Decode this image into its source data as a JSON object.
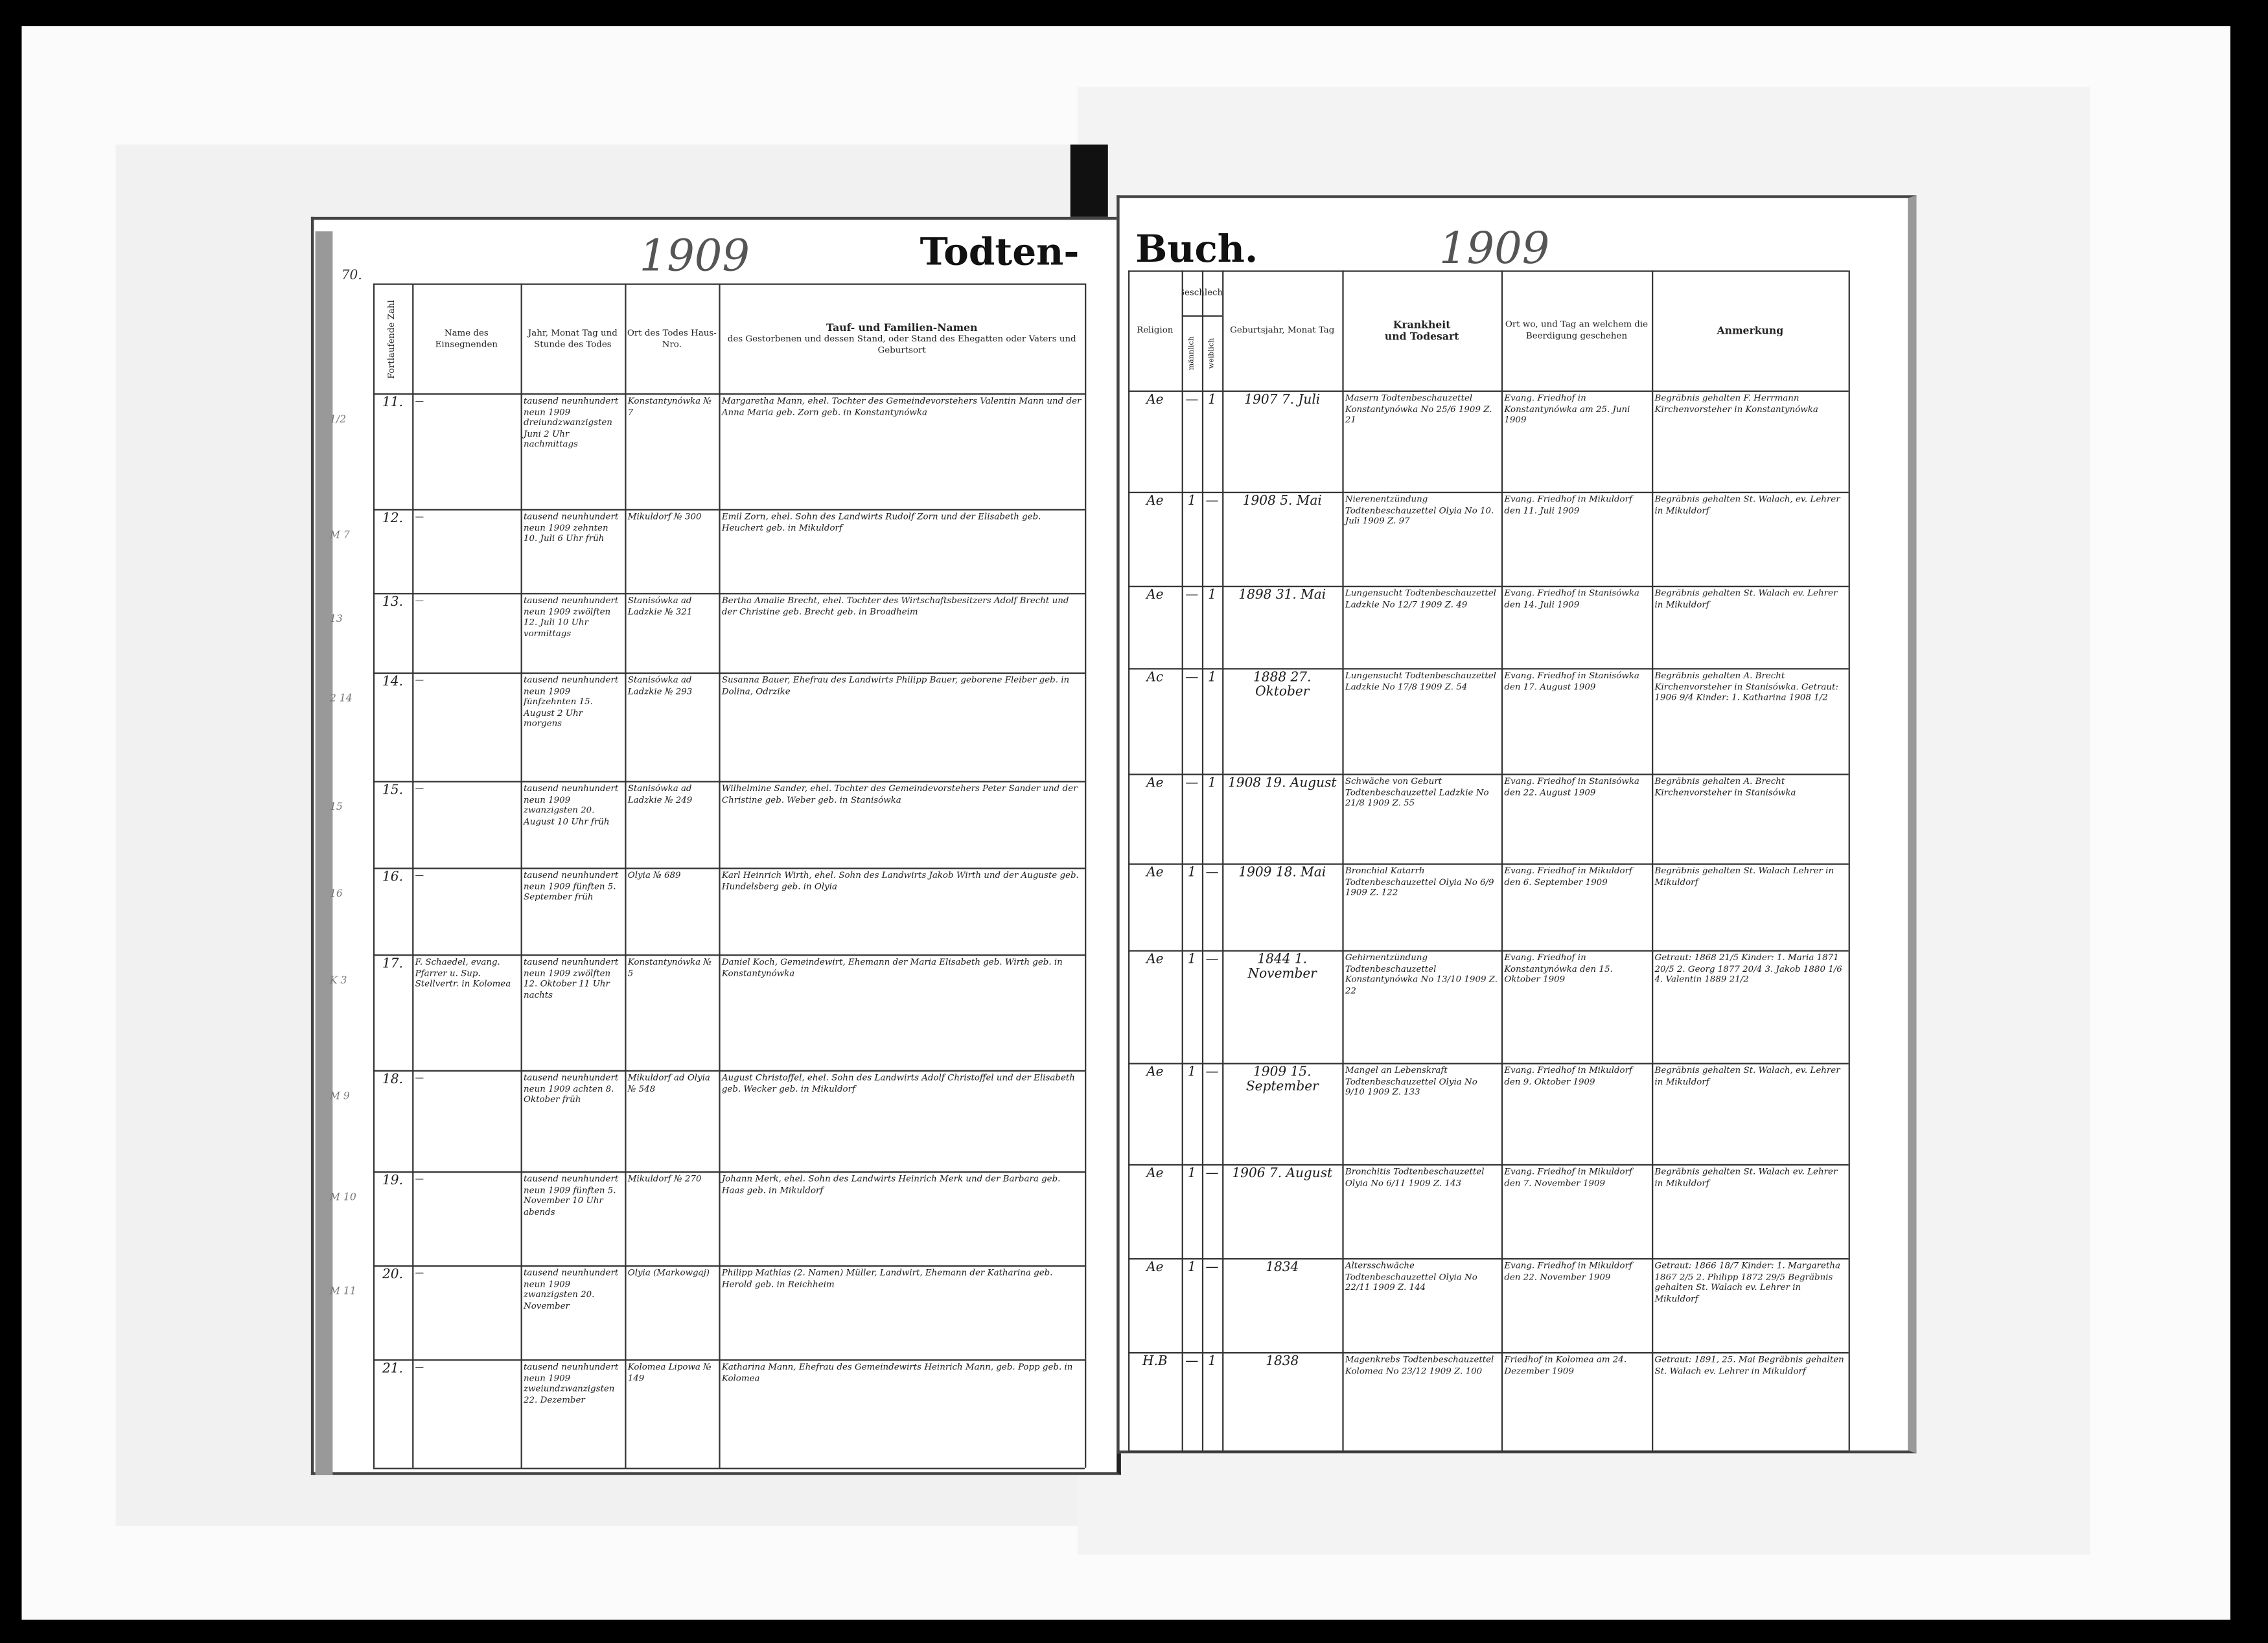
{
  "left_page": {
    "page_number": "70.",
    "year": "1909",
    "title": "Todten-",
    "headers": {
      "number": "Fortlaufende Zahl",
      "officiant": "Name des Einsegnenden",
      "death_date": "Jahr, Monat Tag und Stunde des Todes",
      "place": "Ort des Todes Haus-Nro.",
      "name_title": "Tauf- und Familien-Namen",
      "name_sub": "des Gestorbenen und dessen Stand, oder Stand des Ehegatten oder Vaters und Geburtsort"
    }
  },
  "right_page": {
    "title": "Buch.",
    "year": "1909",
    "headers": {
      "religion": "Religion",
      "sex": "Geschlecht",
      "male": "männlich",
      "female": "weiblich",
      "birth": "Geburtsjahr, Monat Tag",
      "disease_title": "Krankheit",
      "disease_sub": "und Todesart",
      "burial": "Ort wo, und Tag an welchem die Beerdigung geschehen",
      "remarks": "Anmerkung"
    }
  },
  "margin_notes": [
    "1/2",
    "M 7",
    "13",
    "2 14",
    "15",
    "16",
    "K 3",
    "M 9",
    "M 10",
    "M 11",
    ""
  ],
  "rows": [
    {
      "number": "11.",
      "officiant": "—",
      "death_date": "tausend neunhundert neun 1909 dreiundzwanzigsten Juni 2 Uhr nachmittags",
      "place": "Konstantynówka № 7",
      "name": "Margaretha Mann, ehel. Tochter des Gemeindevorstehers Valentin Mann und der Anna Maria geb. Zorn geb. in Konstantynówka",
      "religion": "Ae",
      "male": "—",
      "female": "1",
      "birth": "1907 7. Juli",
      "disease": "Masern Todtenbeschauzettel Konstantynówka No 25/6 1909 Z. 21",
      "burial": "Evang. Friedhof in Konstantynówka am 25. Juni 1909",
      "remarks": "Begräbnis gehalten F. Herrmann Kirchenvorsteher in Konstantynówka"
    },
    {
      "number": "12.",
      "officiant": "—",
      "death_date": "tausend neunhundert neun 1909 zehnten 10. Juli 6 Uhr früh",
      "place": "Mikuldorf № 300",
      "name": "Emil Zorn, ehel. Sohn des Landwirts Rudolf Zorn und der Elisabeth geb. Heuchert geb. in Mikuldorf",
      "religion": "Ae",
      "male": "1",
      "female": "—",
      "birth": "1908 5. Mai",
      "disease": "Nierenentzündung Todtenbeschauzettel Olyia No 10. Juli 1909 Z. 97",
      "burial": "Evang. Friedhof in Mikuldorf den 11. Juli 1909",
      "remarks": "Begräbnis gehalten St. Walach, ev. Lehrer in Mikuldorf"
    },
    {
      "number": "13.",
      "officiant": "—",
      "death_date": "tausend neunhundert neun 1909 zwölften 12. Juli 10 Uhr vormittags",
      "place": "Stanisówka ad Ladzkie № 321",
      "name": "Bertha Amalie Brecht, ehel. Tochter des Wirtschaftsbesitzers Adolf Brecht und der Christine geb. Brecht geb. in Broadheim",
      "religion": "Ae",
      "male": "—",
      "female": "1",
      "birth": "1898 31. Mai",
      "disease": "Lungensucht Todtenbeschauzettel Ladzkie No 12/7 1909 Z. 49",
      "burial": "Evang. Friedhof in Stanisówka den 14. Juli 1909",
      "remarks": "Begräbnis gehalten St. Walach ev. Lehrer in Mikuldorf"
    },
    {
      "number": "14.",
      "officiant": "—",
      "death_date": "tausend neunhundert neun 1909 fünfzehnten 15. August 2 Uhr morgens",
      "place": "Stanisówka ad Ladzkie № 293",
      "name": "Susanna Bauer, Ehefrau des Landwirts Philipp Bauer, geborene Fleiber geb. in Dolina, Odrzike",
      "religion": "Ac",
      "male": "—",
      "female": "1",
      "birth": "1888 27. Oktober",
      "disease": "Lungensucht Todtenbeschauzettel Ladzkie No 17/8 1909 Z. 54",
      "burial": "Evang. Friedhof in Stanisówka den 17. August 1909",
      "remarks": "Begräbnis gehalten A. Brecht Kirchenvorsteher in Stanisówka. Getraut: 1906 9/4 Kinder: 1. Katharina 1908 1/2"
    },
    {
      "number": "15.",
      "officiant": "—",
      "death_date": "tausend neunhundert neun 1909 zwanzigsten 20. August 10 Uhr früh",
      "place": "Stanisówka ad Ladzkie № 249",
      "name": "Wilhelmine Sander, ehel. Tochter des Gemeindevorstehers Peter Sander und der Christine geb. Weber geb. in Stanisówka",
      "religion": "Ae",
      "male": "—",
      "female": "1",
      "birth": "1908 19. August",
      "disease": "Schwäche von Geburt Todtenbeschauzettel Ladzkie No 21/8 1909 Z. 55",
      "burial": "Evang. Friedhof in Stanisówka den 22. August 1909",
      "remarks": "Begräbnis gehalten A. Brecht Kirchenvorsteher in Stanisówka"
    },
    {
      "number": "16.",
      "officiant": "—",
      "death_date": "tausend neunhundert neun 1909 fünften 5. September früh",
      "place": "Olyia № 689",
      "name": "Karl Heinrich Wirth, ehel. Sohn des Landwirts Jakob Wirth und der Auguste geb. Hundelsberg geb. in Olyia",
      "religion": "Ae",
      "male": "1",
      "female": "—",
      "birth": "1909 18. Mai",
      "disease": "Bronchial Katarrh Todtenbeschauzettel Olyia No 6/9 1909 Z. 122",
      "burial": "Evang. Friedhof in Mikuldorf den 6. September 1909",
      "remarks": "Begräbnis gehalten St. Walach Lehrer in Mikuldorf"
    },
    {
      "number": "17.",
      "officiant": "F. Schaedel, evang. Pfarrer u. Sup. Stellvertr. in Kolomea",
      "death_date": "tausend neunhundert neun 1909 zwölften 12. Oktober 11 Uhr nachts",
      "place": "Konstantynówka № 5",
      "name": "Daniel Koch, Gemeindewirt, Ehemann der Maria Elisabeth geb. Wirth geb. in Konstantynówka",
      "religion": "Ae",
      "male": "1",
      "female": "—",
      "birth": "1844 1. November",
      "disease": "Gehirnentzündung Todtenbeschauzettel Konstantynówka No 13/10 1909 Z. 22",
      "burial": "Evang. Friedhof in Konstantynówka den 15. Oktober 1909",
      "remarks": "Getraut: 1868 21/5 Kinder: 1. Maria 1871 20/5 2. Georg 1877 20/4 3. Jakob 1880 1/6 4. Valentin 1889 21/2"
    },
    {
      "number": "18.",
      "officiant": "—",
      "death_date": "tausend neunhundert neun 1909 achten 8. Oktober früh",
      "place": "Mikuldorf ad Olyia № 548",
      "name": "August Christoffel, ehel. Sohn des Landwirts Adolf Christoffel und der Elisabeth geb. Wecker geb. in Mikuldorf",
      "religion": "Ae",
      "male": "1",
      "female": "—",
      "birth": "1909 15. September",
      "disease": "Mangel an Lebenskraft Todtenbeschauzettel Olyia No 9/10 1909 Z. 133",
      "burial": "Evang. Friedhof in Mikuldorf den 9. Oktober 1909",
      "remarks": "Begräbnis gehalten St. Walach, ev. Lehrer in Mikuldorf"
    },
    {
      "number": "19.",
      "officiant": "—",
      "death_date": "tausend neunhundert neun 1909 fünften 5. November 10 Uhr abends",
      "place": "Mikuldorf № 270",
      "name": "Johann Merk, ehel. Sohn des Landwirts Heinrich Merk und der Barbara geb. Haas geb. in Mikuldorf",
      "religion": "Ae",
      "male": "1",
      "female": "—",
      "birth": "1906 7. August",
      "disease": "Bronchitis Todtenbeschauzettel Olyia No 6/11 1909 Z. 143",
      "burial": "Evang. Friedhof in Mikuldorf den 7. November 1909",
      "remarks": "Begräbnis gehalten St. Walach ev. Lehrer in Mikuldorf"
    },
    {
      "number": "20.",
      "officiant": "—",
      "death_date": "tausend neunhundert neun 1909 zwanzigsten 20. November",
      "place": "Olyia (Markowgaj)",
      "name": "Philipp Mathias (2. Namen) Müller, Landwirt, Ehemann der Katharina geb. Herold geb. in Reichheim",
      "religion": "Ae",
      "male": "1",
      "female": "—",
      "birth": "1834",
      "disease": "Altersschwäche Todtenbeschauzettel Olyia No 22/11 1909 Z. 144",
      "burial": "Evang. Friedhof in Mikuldorf den 22. November 1909",
      "remarks": "Getraut: 1866 18/7 Kinder: 1. Margaretha 1867 2/5 2. Philipp 1872 29/5 Begräbnis gehalten St. Walach ev. Lehrer in Mikuldorf"
    },
    {
      "number": "21.",
      "officiant": "—",
      "death_date": "tausend neunhundert neun 1909 zweiundzwanzigsten 22. Dezember",
      "place": "Kolomea Lipowa № 149",
      "name": "Katharina Mann, Ehefrau des Gemeindewirts Heinrich Mann, geb. Popp geb. in Kolomea",
      "religion": "H.B",
      "male": "—",
      "female": "1",
      "birth": "1838",
      "disease": "Magenkrebs Todtenbeschauzettel Kolomea No 23/12 1909 Z. 100",
      "burial": "Friedhof in Kolomea am 24. Dezember 1909",
      "remarks": "Getraut: 1891, 25. Mai Begräbnis gehalten St. Walach ev. Lehrer in Mikuldorf"
    }
  ]
}
